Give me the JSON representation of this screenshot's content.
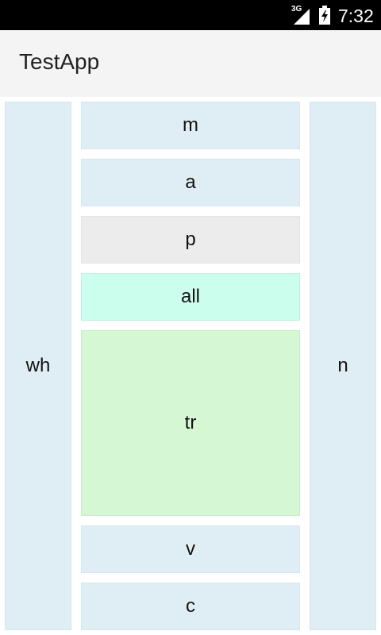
{
  "status_bar": {
    "network": "3G",
    "time": "7:32",
    "signal_icon": "signal-icon",
    "battery_icon": "battery-icon"
  },
  "app": {
    "title": "TestApp"
  },
  "layout_labels": {
    "left": "wh",
    "right": "n",
    "center": [
      "m",
      "a",
      "p",
      "all",
      "tr",
      "v",
      "c"
    ]
  },
  "colors": {
    "side_panel": "#dfeef5",
    "item_default": "#dfeef5",
    "item_p": "#ececec",
    "item_all": "#ccfeed",
    "item_tr": "#d5f7d4"
  }
}
